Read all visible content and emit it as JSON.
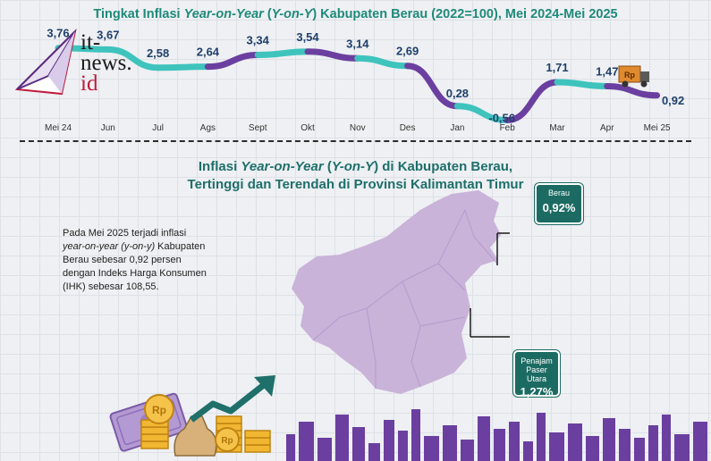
{
  "title_prefix": "Tingkat Inflasi ",
  "title_italic": "Year-on-Year",
  "title_mid": " (",
  "title_italic2": "Y-on-Y",
  "title_suffix": ") Kabupaten Berau (2022=100), Mei 2024-Mei 2025",
  "chart_data": {
    "type": "line",
    "title": "Tingkat Inflasi Year-on-Year (Y-on-Y) Kabupaten Berau (2022=100), Mei 2024-Mei 2025",
    "categories": [
      "Mei 24",
      "Jun",
      "Jul",
      "Ags",
      "Sept",
      "Okt",
      "Nov",
      "Des",
      "Jan",
      "Feb",
      "Mar",
      "Apr",
      "Mei 25"
    ],
    "values": [
      3.76,
      3.67,
      2.58,
      2.64,
      3.34,
      3.54,
      3.14,
      2.69,
      0.28,
      -0.56,
      1.71,
      1.47,
      0.92
    ],
    "value_labels": [
      "3,76",
      "3,67",
      "2,58",
      "2,64",
      "3,34",
      "3,54",
      "3,14",
      "2,69",
      "0,28",
      "-0,56",
      "1,71",
      "1,47",
      "0,92"
    ],
    "colors": {
      "teal": "#3ec3bd",
      "purple": "#6b3fa0"
    },
    "grid": false,
    "legend": "none"
  },
  "subtitle": {
    "line1_prefix": "Inflasi ",
    "line1_italic": "Year-on-Year",
    "line1_mid": " (",
    "line1_italic2": "Y-on-Y",
    "line1_suffix": ") di Kabupaten Berau,",
    "line2": "Tertinggi dan Terendah di Provinsi Kalimantan Timur"
  },
  "paragraph": {
    "p1": "Pada Mei 2025 terjadi inflasi",
    "p2_italic": "year-on-year (y-on-y)",
    "p2_rest": " Kabupaten",
    "p3": "Berau sebesar 0,92 persen",
    "p4": "dengan Indeks Harga Konsumen",
    "p5": "(IHK) sebesar 108,55."
  },
  "callouts": {
    "berau": {
      "name": "Berau",
      "value": "0,92%"
    },
    "ppu": {
      "name1": "Penajam",
      "name2": "Paser Utara",
      "value": "1,27%"
    }
  },
  "logo": {
    "line1": "it-",
    "line2": "news.",
    "line3": "id"
  },
  "truck_label": "Rp",
  "coin_label": "Rp",
  "map_color": "#c9b3d9",
  "skyline_color": "#6b3fa0"
}
